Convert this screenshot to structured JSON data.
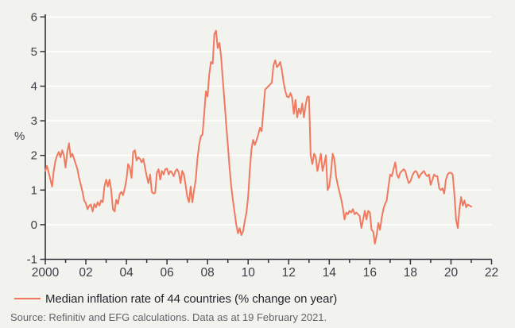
{
  "chart_data": {
    "type": "line",
    "title": "",
    "ylabel": "%",
    "xlabel": "",
    "xlim": [
      2000,
      2022
    ],
    "ylim": [
      -1,
      6
    ],
    "grid": "horizontal-white-lines",
    "legend_position": "bottom-left",
    "y_ticks": [
      -1,
      0,
      1,
      2,
      3,
      4,
      5,
      6
    ],
    "x_major_ticks": [
      {
        "year": 2000,
        "label": "2000"
      },
      {
        "year": 2002,
        "label": "02"
      },
      {
        "year": 2004,
        "label": "04"
      },
      {
        "year": 2006,
        "label": "06"
      },
      {
        "year": 2008,
        "label": "08"
      },
      {
        "year": 2010,
        "label": "10"
      },
      {
        "year": 2012,
        "label": "12"
      },
      {
        "year": 2014,
        "label": "14"
      },
      {
        "year": 2016,
        "label": "16"
      },
      {
        "year": 2018,
        "label": "18"
      },
      {
        "year": 2020,
        "label": "20"
      },
      {
        "year": 2022,
        "label": "22"
      }
    ],
    "x_minor_tick_every_years": 1,
    "series": [
      {
        "name": "Median inflation rate of 44 countries (% change on year)",
        "color": "#f0795e",
        "x_start_year": 2000,
        "x_step_years": 0.0833333,
        "monthly_values": [
          1.55,
          1.7,
          1.5,
          1.3,
          1.1,
          1.55,
          1.85,
          2.0,
          2.1,
          1.95,
          2.15,
          2.0,
          1.65,
          2.1,
          2.35,
          1.95,
          2.05,
          1.9,
          1.75,
          1.6,
          1.35,
          1.15,
          0.95,
          0.7,
          0.62,
          0.45,
          0.55,
          0.58,
          0.38,
          0.6,
          0.5,
          0.65,
          0.55,
          0.7,
          0.65,
          1.1,
          1.3,
          1.1,
          1.3,
          1.0,
          0.45,
          0.38,
          0.72,
          0.6,
          0.88,
          0.95,
          0.85,
          1.05,
          1.3,
          1.75,
          1.65,
          1.35,
          2.1,
          2.15,
          1.85,
          1.95,
          1.9,
          1.8,
          1.9,
          1.65,
          1.4,
          1.2,
          1.45,
          0.95,
          0.9,
          0.92,
          1.5,
          1.6,
          1.3,
          1.55,
          1.45,
          1.6,
          1.62,
          1.45,
          1.55,
          1.5,
          1.4,
          1.55,
          1.6,
          1.5,
          1.2,
          1.55,
          1.45,
          1.15,
          0.8,
          0.65,
          1.1,
          0.65,
          1.0,
          1.3,
          1.9,
          2.3,
          2.55,
          2.6,
          3.2,
          3.85,
          3.7,
          4.35,
          4.7,
          4.65,
          5.5,
          5.6,
          5.1,
          5.25,
          4.85,
          4.2,
          3.55,
          2.9,
          2.3,
          1.65,
          1.1,
          0.7,
          0.35,
          0.0,
          -0.25,
          -0.1,
          -0.3,
          -0.2,
          0.1,
          0.35,
          0.8,
          1.6,
          2.2,
          2.45,
          2.3,
          2.45,
          2.6,
          2.8,
          2.7,
          3.3,
          3.9,
          3.95,
          4.0,
          4.05,
          4.1,
          4.6,
          4.75,
          4.55,
          4.6,
          4.7,
          4.45,
          4.1,
          3.85,
          3.7,
          3.68,
          3.8,
          3.68,
          3.2,
          3.6,
          3.1,
          3.35,
          3.2,
          3.5,
          3.1,
          3.45,
          3.7,
          3.7,
          2.0,
          1.75,
          2.05,
          1.95,
          1.55,
          1.8,
          2.05,
          1.55,
          1.75,
          2.0,
          1.0,
          1.1,
          1.5,
          2.05,
          1.9,
          1.4,
          1.15,
          0.95,
          0.75,
          0.5,
          0.15,
          0.35,
          0.3,
          0.4,
          0.35,
          0.45,
          0.3,
          0.35,
          0.3,
          0.25,
          -0.1,
          0.15,
          0.4,
          0.15,
          0.4,
          0.35,
          -0.15,
          -0.2,
          -0.55,
          -0.3,
          0.05,
          -0.15,
          0.2,
          0.45,
          0.6,
          0.7,
          1.1,
          1.45,
          1.4,
          1.6,
          1.8,
          1.45,
          1.35,
          1.5,
          1.55,
          1.6,
          1.55,
          1.35,
          1.2,
          1.25,
          1.4,
          1.5,
          1.55,
          1.5,
          1.35,
          1.45,
          1.5,
          1.55,
          1.45,
          1.4,
          1.45,
          1.15,
          1.3,
          1.45,
          1.4,
          1.4,
          1.05,
          1.0,
          1.05,
          0.9,
          1.3,
          1.45,
          1.5,
          1.5,
          1.45,
          0.9,
          0.15,
          -0.1,
          0.45,
          0.8,
          0.55,
          0.7,
          0.5,
          0.58,
          0.55,
          0.52
        ]
      }
    ]
  },
  "legend": {
    "label": "Median inflation rate of 44 countries (% change on year)"
  },
  "source": {
    "text": "Source: Refinitiv and EFG calculations. Data as at 19 February 2021."
  },
  "colors": {
    "background": "#f2f2ef",
    "line": "#f0795e",
    "grid": "#ffffff",
    "axis": "#32323a",
    "tick_text": "#3c3c46",
    "legend_text": "#26262e",
    "source_text": "#63636a"
  }
}
